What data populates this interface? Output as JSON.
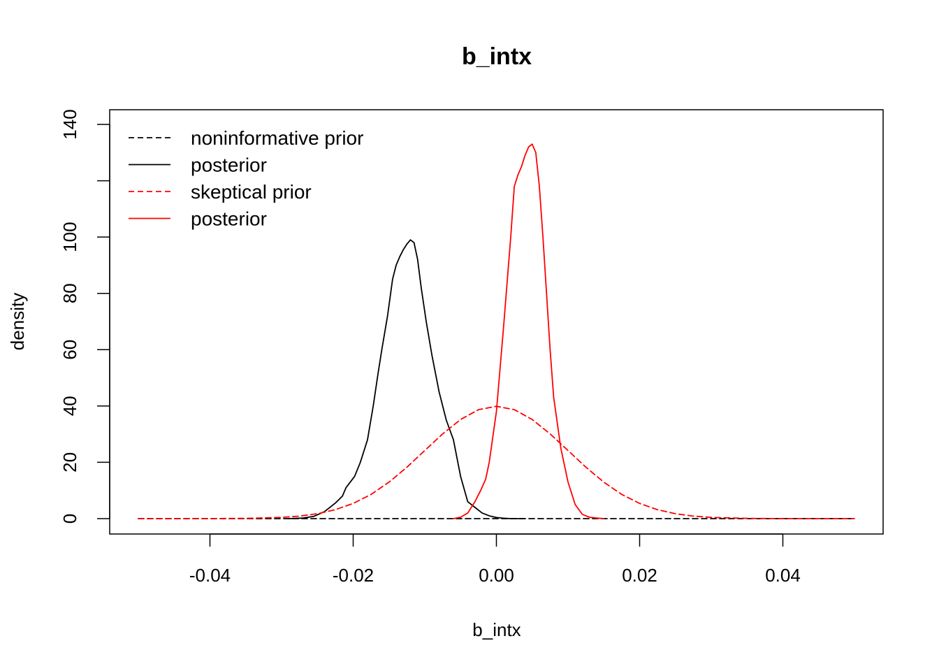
{
  "chart_data": {
    "type": "line",
    "title": "b_intx",
    "xlabel": "b_intx",
    "ylabel": "density",
    "xlim": [
      -0.05,
      0.05
    ],
    "ylim": [
      0,
      140
    ],
    "x_ticks": [
      -0.04,
      -0.02,
      0.0,
      0.02,
      0.04
    ],
    "x_tick_labels": [
      "-0.04",
      "-0.02",
      "0.00",
      "0.02",
      "0.04"
    ],
    "y_ticks": [
      0,
      20,
      40,
      60,
      80,
      100,
      120,
      140
    ],
    "y_tick_labels": [
      "0",
      "20",
      "40",
      "60",
      "80",
      "100",
      "",
      "140"
    ],
    "grid": false,
    "legend_position": "top-left",
    "series": [
      {
        "name": "noninformative prior",
        "color": "#000000",
        "dash": "dashed",
        "x": [
          -0.05,
          0.05
        ],
        "y": [
          0.0,
          0.0
        ]
      },
      {
        "name": "posterior",
        "color": "#000000",
        "dash": "solid",
        "x": [
          -0.029,
          -0.027,
          -0.0255,
          -0.024,
          -0.0225,
          -0.0215,
          -0.021,
          -0.0198,
          -0.019,
          -0.018,
          -0.0172,
          -0.0165,
          -0.016,
          -0.0152,
          -0.0145,
          -0.014,
          -0.0135,
          -0.013,
          -0.0125,
          -0.012,
          -0.0115,
          -0.011,
          -0.0105,
          -0.0098,
          -0.009,
          -0.008,
          -0.007,
          -0.006,
          -0.005,
          -0.004,
          -0.003,
          -0.002,
          -0.001,
          0.0,
          0.001,
          0.002,
          0.003,
          0.004
        ],
        "y": [
          0.0,
          0.2,
          0.8,
          2.5,
          5.5,
          8.0,
          11.0,
          15.0,
          20.0,
          28.0,
          40.0,
          52.0,
          60.0,
          72.0,
          85.0,
          90.0,
          93.0,
          95.5,
          97.5,
          99.0,
          98.0,
          92.0,
          82.0,
          70.0,
          58.0,
          45.0,
          35.0,
          28.0,
          15.0,
          6.0,
          4.0,
          2.0,
          1.0,
          0.4,
          0.15,
          0.0,
          0.0,
          0.0
        ]
      },
      {
        "name": "skeptical prior",
        "color": "#ff0000",
        "dash": "dashed",
        "x": [
          -0.05,
          -0.045,
          -0.04,
          -0.035,
          -0.03,
          -0.0275,
          -0.025,
          -0.0225,
          -0.02,
          -0.0175,
          -0.015,
          -0.0125,
          -0.01,
          -0.0075,
          -0.005,
          -0.0025,
          0.0,
          0.0025,
          0.005,
          0.0075,
          0.01,
          0.0125,
          0.015,
          0.0175,
          0.02,
          0.0225,
          0.025,
          0.0275,
          0.03,
          0.035,
          0.04,
          0.045,
          0.05
        ],
        "y": [
          0.0,
          0.0,
          0.01,
          0.09,
          0.44,
          0.9,
          1.75,
          3.16,
          5.4,
          8.6,
          12.95,
          18.26,
          24.2,
          30.1,
          35.2,
          38.7,
          39.9,
          38.7,
          35.2,
          30.1,
          24.2,
          18.26,
          12.95,
          8.6,
          5.4,
          3.16,
          1.75,
          0.9,
          0.44,
          0.09,
          0.01,
          0.0,
          0.0
        ]
      },
      {
        "name": "posterior",
        "color": "#ff0000",
        "dash": "solid",
        "x": [
          -0.006,
          -0.005,
          -0.004,
          -0.003,
          -0.0022,
          -0.0015,
          -0.001,
          0.0,
          0.001,
          0.002,
          0.0025,
          0.003,
          0.0035,
          0.004,
          0.0045,
          0.005,
          0.0055,
          0.006,
          0.0065,
          0.007,
          0.0075,
          0.008,
          0.009,
          0.01,
          0.011,
          0.012,
          0.013,
          0.014,
          0.015
        ],
        "y": [
          0.0,
          0.5,
          2.0,
          6.0,
          10.0,
          14.0,
          20.0,
          38.0,
          68.0,
          100.0,
          118.0,
          122.0,
          125.0,
          129.0,
          132.0,
          133.0,
          130.0,
          118.0,
          100.0,
          80.0,
          60.0,
          43.0,
          25.0,
          13.0,
          5.0,
          1.5,
          0.5,
          0.2,
          0.0
        ]
      }
    ]
  }
}
